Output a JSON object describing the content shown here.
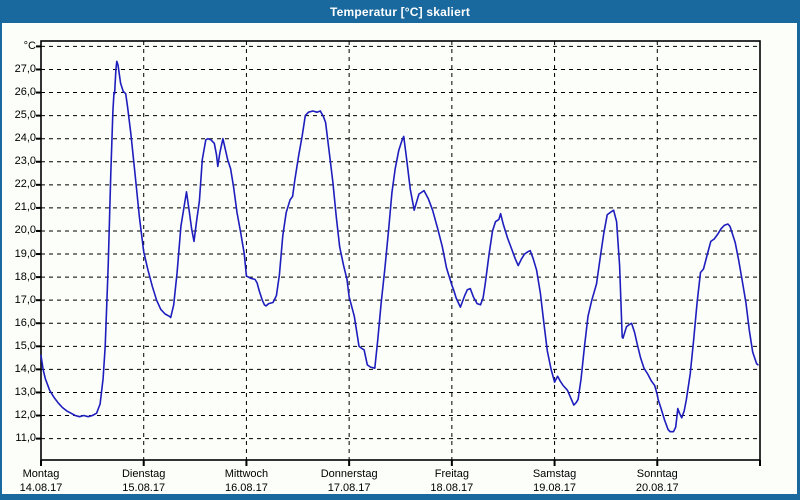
{
  "window": {
    "title": "Temperatur [°C] skaliert"
  },
  "colors": {
    "titlebar_bg": "#19699E",
    "title_text": "#FFFFFF",
    "content_bg": "#FCFEF9",
    "grid": "#000000",
    "axis": "#000000",
    "line": "#1E1EBE",
    "label_text": "#000000"
  },
  "chart_data": {
    "type": "line",
    "title": "Temperatur [°C] skaliert",
    "grid": "dashed",
    "legend": "none",
    "y_axis": {
      "unit_label": "°C",
      "range": [
        10,
        28
      ],
      "gridline_interval": 1.0,
      "tick_labels": [
        {
          "value": 28,
          "label": "°C"
        },
        {
          "value": 27,
          "label": "27,0"
        },
        {
          "value": 26,
          "label": "26,0"
        },
        {
          "value": 25,
          "label": "25,0"
        },
        {
          "value": 24,
          "label": "24,0"
        },
        {
          "value": 23,
          "label": "23,0"
        },
        {
          "value": 22,
          "label": "22,0"
        },
        {
          "value": 21,
          "label": "21,0"
        },
        {
          "value": 20,
          "label": "20,0"
        },
        {
          "value": 19,
          "label": "19,0"
        },
        {
          "value": 18,
          "label": "18,0"
        },
        {
          "value": 17,
          "label": "17,0"
        },
        {
          "value": 16,
          "label": "16,0"
        },
        {
          "value": 15,
          "label": "15,0"
        },
        {
          "value": 14,
          "label": "14,0"
        },
        {
          "value": 13,
          "label": "13,0"
        },
        {
          "value": 12,
          "label": "12,0"
        },
        {
          "value": 11,
          "label": "11,0"
        }
      ]
    },
    "x_axis": {
      "unit": "hours",
      "range_hours": [
        0,
        168
      ],
      "day_tick_interval_hours": 24,
      "day_labels": [
        {
          "day": "Montag",
          "date": "14.08.17"
        },
        {
          "day": "Dienstag",
          "date": "15.08.17"
        },
        {
          "day": "Mittwoch",
          "date": "16.08.17"
        },
        {
          "day": "Donnerstag",
          "date": "17.08.17"
        },
        {
          "day": "Freitag",
          "date": "18.08.17"
        },
        {
          "day": "Samstag",
          "date": "19.08.17"
        },
        {
          "day": "Sonntag",
          "date": "20.08.17"
        }
      ]
    },
    "series": [
      {
        "name": "Temperatur",
        "color": "#1E1EBE",
        "points": [
          [
            0,
            14.6
          ],
          [
            0.5,
            14.0
          ],
          [
            1,
            13.6
          ],
          [
            2,
            13.1
          ],
          [
            3,
            12.8
          ],
          [
            4,
            12.55
          ],
          [
            5,
            12.35
          ],
          [
            6,
            12.2
          ],
          [
            7,
            12.1
          ],
          [
            8,
            12.0
          ],
          [
            9,
            11.95
          ],
          [
            10,
            12.0
          ],
          [
            11,
            11.95
          ],
          [
            12,
            12.0
          ],
          [
            13,
            12.1
          ],
          [
            13.8,
            12.5
          ],
          [
            14.5,
            13.6
          ],
          [
            15,
            15.0
          ],
          [
            15.7,
            18.5
          ],
          [
            16.3,
            22.5
          ],
          [
            16.8,
            25.2
          ],
          [
            17.05,
            26.0
          ],
          [
            17.2,
            25.95
          ],
          [
            17.5,
            27.0
          ],
          [
            17.7,
            27.35
          ],
          [
            18,
            27.2
          ],
          [
            18.6,
            26.4
          ],
          [
            19.2,
            26.05
          ],
          [
            19.8,
            25.95
          ],
          [
            20.2,
            25.4
          ],
          [
            21,
            24.2
          ],
          [
            22,
            22.4
          ],
          [
            23,
            20.6
          ],
          [
            24,
            19.1
          ],
          [
            25,
            18.3
          ],
          [
            26,
            17.6
          ],
          [
            27,
            17.0
          ],
          [
            28,
            16.6
          ],
          [
            29,
            16.4
          ],
          [
            30,
            16.3
          ],
          [
            30.3,
            16.25
          ],
          [
            31,
            16.8
          ],
          [
            31.8,
            18.2
          ],
          [
            32.7,
            20.2
          ],
          [
            33.4,
            21.0
          ],
          [
            34,
            21.7
          ],
          [
            34.6,
            20.9
          ],
          [
            35.2,
            20.1
          ],
          [
            35.75,
            19.55
          ],
          [
            36.4,
            20.5
          ],
          [
            37,
            21.3
          ],
          [
            37.7,
            23.1
          ],
          [
            38.5,
            23.95
          ],
          [
            39,
            24.0
          ],
          [
            39.7,
            23.95
          ],
          [
            40.5,
            23.8
          ],
          [
            41,
            23.3
          ],
          [
            41.3,
            22.8
          ],
          [
            41.8,
            23.4
          ],
          [
            42.5,
            24.0
          ],
          [
            43,
            23.6
          ],
          [
            43.6,
            23.1
          ],
          [
            44.3,
            22.7
          ],
          [
            45,
            21.9
          ],
          [
            45.8,
            20.8
          ],
          [
            46.6,
            20.0
          ],
          [
            47.5,
            19.0
          ],
          [
            48,
            18.05
          ],
          [
            49,
            17.95
          ],
          [
            50,
            17.9
          ],
          [
            50.5,
            17.75
          ],
          [
            51,
            17.4
          ],
          [
            51.7,
            17.0
          ],
          [
            52.2,
            16.8
          ],
          [
            52.6,
            16.75
          ],
          [
            53.2,
            16.85
          ],
          [
            54.2,
            16.9
          ],
          [
            55,
            17.2
          ],
          [
            55.7,
            18.1
          ],
          [
            56.5,
            19.8
          ],
          [
            57.3,
            20.8
          ],
          [
            58.2,
            21.35
          ],
          [
            58.8,
            21.5
          ],
          [
            59.3,
            22.2
          ],
          [
            60.2,
            23.25
          ],
          [
            61,
            24.1
          ],
          [
            61.75,
            25.0
          ],
          [
            62.5,
            25.15
          ],
          [
            63.5,
            25.2
          ],
          [
            64.5,
            25.15
          ],
          [
            65.25,
            25.2
          ],
          [
            66,
            24.95
          ],
          [
            66.5,
            24.7
          ],
          [
            67.3,
            23.5
          ],
          [
            68.2,
            22.1
          ],
          [
            69,
            20.6
          ],
          [
            69.8,
            19.3
          ],
          [
            70.7,
            18.5
          ],
          [
            71.5,
            17.9
          ],
          [
            72,
            17.15
          ],
          [
            73.2,
            16.3
          ],
          [
            74.3,
            15.0
          ],
          [
            75,
            14.9
          ],
          [
            75.5,
            14.85
          ],
          [
            76.25,
            14.2
          ],
          [
            77,
            14.1
          ],
          [
            78,
            14.05
          ],
          [
            78.7,
            15.3
          ],
          [
            79.5,
            16.9
          ],
          [
            80.3,
            18.3
          ],
          [
            81.2,
            20.0
          ],
          [
            82,
            21.65
          ],
          [
            82.75,
            22.7
          ],
          [
            83.6,
            23.5
          ],
          [
            84.3,
            23.9
          ],
          [
            84.75,
            24.1
          ],
          [
            85.3,
            23.3
          ],
          [
            86.3,
            21.8
          ],
          [
            87.2,
            20.9
          ],
          [
            88.3,
            21.6
          ],
          [
            89.5,
            21.75
          ],
          [
            90.5,
            21.4
          ],
          [
            91.5,
            20.9
          ],
          [
            92.7,
            20.1
          ],
          [
            93.8,
            19.3
          ],
          [
            94.75,
            18.4
          ],
          [
            96,
            17.65
          ],
          [
            96.5,
            17.4
          ],
          [
            97,
            17.1
          ],
          [
            98,
            16.7
          ],
          [
            99,
            17.2
          ],
          [
            99.6,
            17.45
          ],
          [
            100.3,
            17.5
          ],
          [
            101,
            17.15
          ],
          [
            101.9,
            16.85
          ],
          [
            102.7,
            16.8
          ],
          [
            103.3,
            17.1
          ],
          [
            103.8,
            17.7
          ],
          [
            104.7,
            19.0
          ],
          [
            105.5,
            20.0
          ],
          [
            106.2,
            20.4
          ],
          [
            107,
            20.5
          ],
          [
            107.4,
            20.75
          ],
          [
            108,
            20.3
          ],
          [
            109,
            19.7
          ],
          [
            110,
            19.2
          ],
          [
            110.8,
            18.8
          ],
          [
            111.5,
            18.5
          ],
          [
            112.3,
            18.8
          ],
          [
            113,
            19.0
          ],
          [
            113.8,
            19.1
          ],
          [
            114.3,
            19.15
          ],
          [
            115,
            18.8
          ],
          [
            115.8,
            18.3
          ],
          [
            116.7,
            17.3
          ],
          [
            117.5,
            16.0
          ],
          [
            118.3,
            14.8
          ],
          [
            119.2,
            14.0
          ],
          [
            120,
            13.45
          ],
          [
            120.7,
            13.7
          ],
          [
            121.3,
            13.5
          ],
          [
            122,
            13.3
          ],
          [
            123,
            13.1
          ],
          [
            123.7,
            12.8
          ],
          [
            124.5,
            12.45
          ],
          [
            125,
            12.55
          ],
          [
            125.5,
            12.7
          ],
          [
            126.2,
            13.6
          ],
          [
            127,
            15.0
          ],
          [
            127.8,
            16.3
          ],
          [
            128.7,
            17.0
          ],
          [
            129.8,
            17.7
          ],
          [
            130.7,
            18.9
          ],
          [
            131.5,
            19.9
          ],
          [
            132.3,
            20.7
          ],
          [
            133,
            20.8
          ],
          [
            133.8,
            20.9
          ],
          [
            134.5,
            20.4
          ],
          [
            135.2,
            18.5
          ],
          [
            135.8,
            15.4
          ],
          [
            136,
            15.35
          ],
          [
            136.8,
            15.85
          ],
          [
            137.5,
            15.95
          ],
          [
            138,
            16.0
          ],
          [
            138.7,
            15.6
          ],
          [
            139.3,
            15.1
          ],
          [
            140.1,
            14.5
          ],
          [
            140.9,
            14.05
          ],
          [
            141.75,
            13.8
          ],
          [
            142.6,
            13.5
          ],
          [
            143.4,
            13.3
          ],
          [
            144,
            12.9
          ],
          [
            144.2,
            12.7
          ],
          [
            144.9,
            12.3
          ],
          [
            145.7,
            11.8
          ],
          [
            146.5,
            11.4
          ],
          [
            147,
            11.3
          ],
          [
            147.8,
            11.3
          ],
          [
            148.3,
            11.5
          ],
          [
            148.8,
            12.3
          ],
          [
            149.2,
            12.1
          ],
          [
            149.7,
            11.9
          ],
          [
            150.3,
            12.2
          ],
          [
            150.8,
            12.7
          ],
          [
            151.7,
            13.8
          ],
          [
            152.5,
            15.3
          ],
          [
            153.3,
            16.9
          ],
          [
            154.1,
            18.2
          ],
          [
            154.8,
            18.35
          ],
          [
            155.7,
            19.0
          ],
          [
            156.5,
            19.55
          ],
          [
            157.3,
            19.65
          ],
          [
            158.1,
            19.85
          ],
          [
            158.9,
            20.1
          ],
          [
            159.7,
            20.25
          ],
          [
            160.5,
            20.3
          ],
          [
            161,
            20.2
          ],
          [
            162.2,
            19.5
          ],
          [
            163,
            18.75
          ],
          [
            163.8,
            17.9
          ],
          [
            164.7,
            16.9
          ],
          [
            165.5,
            15.7
          ],
          [
            166.3,
            14.75
          ],
          [
            167.2,
            14.25
          ],
          [
            167.5,
            14.2
          ]
        ]
      }
    ]
  }
}
